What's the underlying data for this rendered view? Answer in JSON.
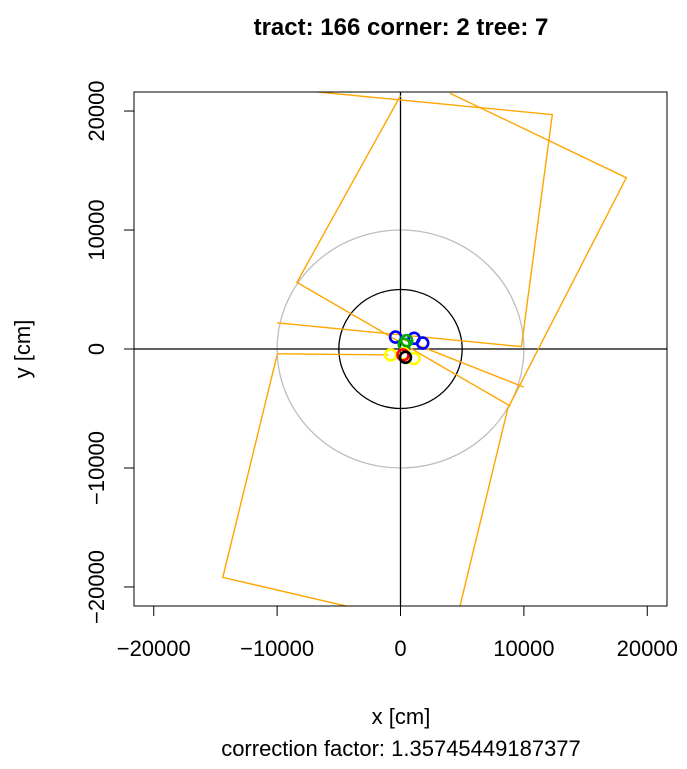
{
  "chart_data": {
    "type": "scatter",
    "title": "tract: 166 corner: 2 tree: 7",
    "xlabel": "x [cm]",
    "ylabel": "y [cm]",
    "subtitle": "correction factor: 1.35745449187377",
    "xlim": [
      -20000,
      20000
    ],
    "ylim": [
      -20000,
      20000
    ],
    "x_ticks": [
      -20000,
      -10000,
      0,
      10000,
      20000
    ],
    "y_ticks": [
      -20000,
      -10000,
      0,
      10000,
      20000
    ],
    "x_tick_labels": [
      "−20000",
      "−10000",
      "0",
      "10000",
      "20000"
    ],
    "y_tick_labels": [
      "−20000",
      "−10000",
      "0",
      "10000",
      "20000"
    ],
    "colors": {
      "boundary": "#FFA500",
      "outer_circle": "#BEBEBE",
      "inner_circle": "#000000",
      "axes": "#000000"
    },
    "circles": [
      {
        "name": "outer",
        "cx": 0,
        "cy": 0,
        "r": 10000,
        "color": "#BEBEBE"
      },
      {
        "name": "inner",
        "cx": 0,
        "cy": 0,
        "r": 5000,
        "color": "#000000"
      }
    ],
    "boundary_lines": [
      [
        [
          -7700,
          21700
        ],
        [
          12300,
          19700
        ],
        [
          9800,
          200
        ],
        [
          -10000,
          2200
        ]
      ],
      [
        [
          -10000,
          -500
        ],
        [
          -14400,
          -19200
        ],
        [
          -4000,
          -21700
        ]
      ],
      [
        [
          4000,
          21500
        ],
        [
          18300,
          14400
        ],
        [
          8700,
          -5000
        ],
        [
          4800,
          -21700
        ]
      ],
      [
        [
          0,
          21300
        ],
        [
          -8400,
          5600
        ],
        [
          8900,
          -4800
        ]
      ],
      [
        [
          -10000,
          -400
        ],
        [
          -1000,
          -500
        ]
      ],
      [
        [
          0,
          900
        ],
        [
          10000,
          -3200
        ]
      ]
    ],
    "points": [
      {
        "x": -400,
        "y": 1000,
        "color": "#0000FF"
      },
      {
        "x": 1100,
        "y": 900,
        "color": "#0000FF"
      },
      {
        "x": 1800,
        "y": 500,
        "color": "#0000FF"
      },
      {
        "x": 500,
        "y": 700,
        "color": "#00AA00"
      },
      {
        "x": 300,
        "y": 400,
        "color": "#00AA00"
      },
      {
        "x": -800,
        "y": -500,
        "color": "#FFFF00"
      },
      {
        "x": 300,
        "y": -400,
        "color": "#FFFF00"
      },
      {
        "x": 1100,
        "y": -800,
        "color": "#FFFF00"
      },
      {
        "x": 200,
        "y": -500,
        "color": "#FF0000"
      },
      {
        "x": 400,
        "y": -700,
        "color": "#000000"
      }
    ]
  }
}
